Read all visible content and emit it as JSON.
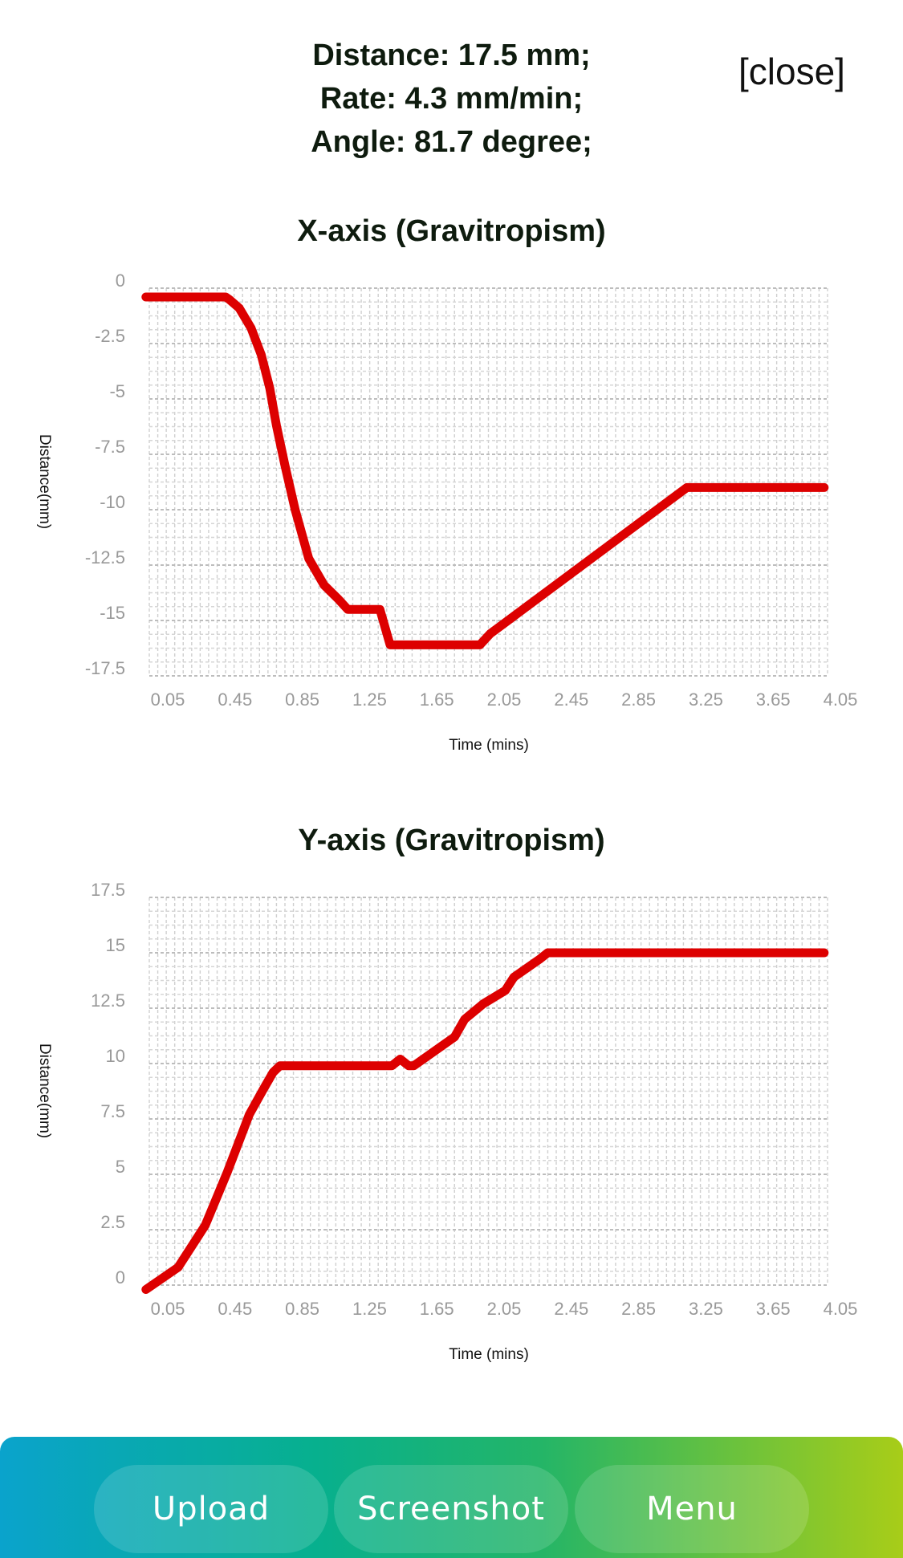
{
  "summary": {
    "distance": "Distance: 17.5 mm;",
    "rate": "Rate: 4.3 mm/min;",
    "angle": "Angle: 81.7 degree;"
  },
  "close_label": "[close]",
  "chart_data": [
    {
      "type": "line",
      "title": "X-axis (Gravitropism)",
      "xlabel": "Time (mins)",
      "ylabel": "Distance(mm)",
      "x_ticks": [
        "0.05",
        "0.45",
        "0.85",
        "1.25",
        "1.65",
        "2.05",
        "2.45",
        "2.85",
        "3.25",
        "3.65",
        "4.05"
      ],
      "y_ticks": [
        "0",
        "-2.5",
        "-5",
        "-7.5",
        "-10",
        "-12.5",
        "-15",
        "-17.5"
      ],
      "xlim": [
        0.05,
        4.05
      ],
      "ylim": [
        -17.5,
        0
      ],
      "grid": true,
      "line_color": "#dd0000",
      "series": [
        {
          "x": [
            0.03,
            0.3,
            0.5,
            0.52,
            0.58,
            0.65,
            0.71,
            0.76,
            0.8,
            0.85,
            0.91,
            0.99,
            1.08,
            1.16,
            1.22,
            1.33,
            1.41,
            1.47,
            1.49,
            1.53,
            2.0,
            2.06,
            3.22,
            4.03
          ],
          "y": [
            -0.4,
            -0.4,
            -0.4,
            -0.5,
            -0.9,
            -1.8,
            -3.0,
            -4.5,
            -6.2,
            -8.0,
            -10.0,
            -12.2,
            -13.4,
            -14.0,
            -14.5,
            -14.5,
            -14.5,
            -16.1,
            -16.1,
            -16.1,
            -16.1,
            -15.6,
            -9.0,
            -9.0
          ]
        }
      ]
    },
    {
      "type": "line",
      "title": "Y-axis (Gravitropism)",
      "xlabel": "Time (mins)",
      "ylabel": "Distance(mm)",
      "x_ticks": [
        "0.05",
        "0.45",
        "0.85",
        "1.25",
        "1.65",
        "2.05",
        "2.45",
        "2.85",
        "3.25",
        "3.65",
        "4.05"
      ],
      "y_ticks": [
        "17.5",
        "15",
        "12.5",
        "10",
        "7.5",
        "5",
        "2.5",
        "0"
      ],
      "xlim": [
        0.05,
        4.05
      ],
      "ylim": [
        0,
        17.5
      ],
      "grid": true,
      "line_color": "#dd0000",
      "series": [
        {
          "x": [
            0.03,
            0.22,
            0.38,
            0.51,
            0.64,
            0.72,
            0.78,
            0.82,
            1.16,
            1.48,
            1.53,
            1.58,
            1.61,
            1.85,
            1.91,
            2.02,
            2.15,
            2.2,
            2.35,
            2.4,
            4.03
          ],
          "y": [
            -0.2,
            0.8,
            2.7,
            5.1,
            7.7,
            8.8,
            9.6,
            9.9,
            9.9,
            9.9,
            10.2,
            9.9,
            9.9,
            11.2,
            12.0,
            12.7,
            13.3,
            13.9,
            14.7,
            15.0,
            15.0
          ]
        }
      ]
    }
  ],
  "bottom_bar": {
    "upload_label": "Upload",
    "screenshot_label": "Screenshot",
    "menu_label": "Menu"
  }
}
